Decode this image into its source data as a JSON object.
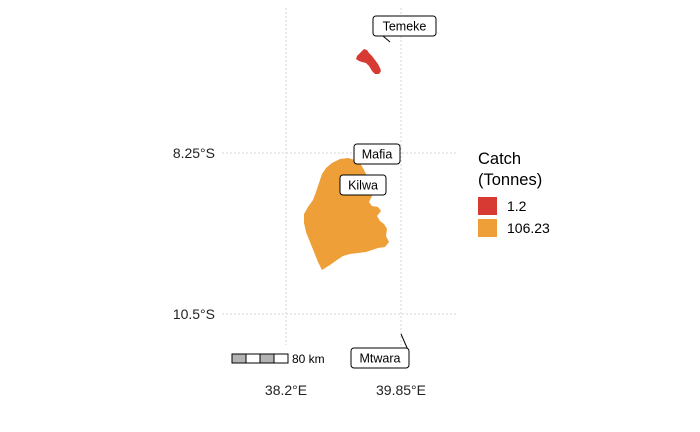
{
  "axes": {
    "y_ticks": [
      "8.25°S",
      "10.5°S"
    ],
    "x_ticks": [
      "38.2°E",
      "39.85°E"
    ]
  },
  "labels": {
    "temeke": "Temeke",
    "mafia": "Mafia",
    "kilwa": "Kilwa",
    "mtwara": "Mtwara"
  },
  "legend": {
    "title_line1": "Catch",
    "title_line2": "(Tonnes)",
    "items": [
      {
        "label": "1.2",
        "color": "#d63a32"
      },
      {
        "label": "106.23",
        "color": "#ee9f37"
      }
    ]
  },
  "scale_bar": {
    "label": "80 km"
  },
  "colors": {
    "low": "#d63a32",
    "high": "#ee9f37",
    "grid": "#d6d6d6",
    "scale_fill": "#b3b3b3"
  }
}
